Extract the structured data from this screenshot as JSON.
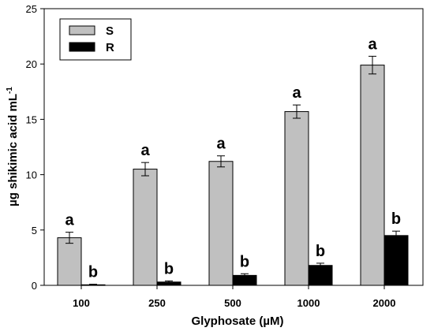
{
  "chart_data": {
    "type": "bar",
    "title": "",
    "xlabel": "Glyphosate (µM)",
    "ylabel_main": "µg shikimic acid mL",
    "ylabel_sup": "-1",
    "ylim": [
      0,
      25
    ],
    "yticks": [
      0,
      5,
      10,
      15,
      20,
      25
    ],
    "grid": false,
    "legend_position": "top-left",
    "categories": [
      "100",
      "250",
      "500",
      "1000",
      "2000"
    ],
    "series": [
      {
        "name": "S",
        "color": "#c0c0c0",
        "values": [
          4.3,
          10.5,
          11.2,
          15.7,
          19.9
        ],
        "errors": [
          0.5,
          0.6,
          0.5,
          0.6,
          0.8
        ],
        "labels": [
          "a",
          "a",
          "a",
          "a",
          "a"
        ]
      },
      {
        "name": "R",
        "color": "#000000",
        "values": [
          0.05,
          0.3,
          0.9,
          1.8,
          4.5
        ],
        "errors": [
          0.05,
          0.1,
          0.15,
          0.2,
          0.4
        ],
        "labels": [
          "b",
          "b",
          "b",
          "b",
          "b"
        ]
      }
    ]
  }
}
